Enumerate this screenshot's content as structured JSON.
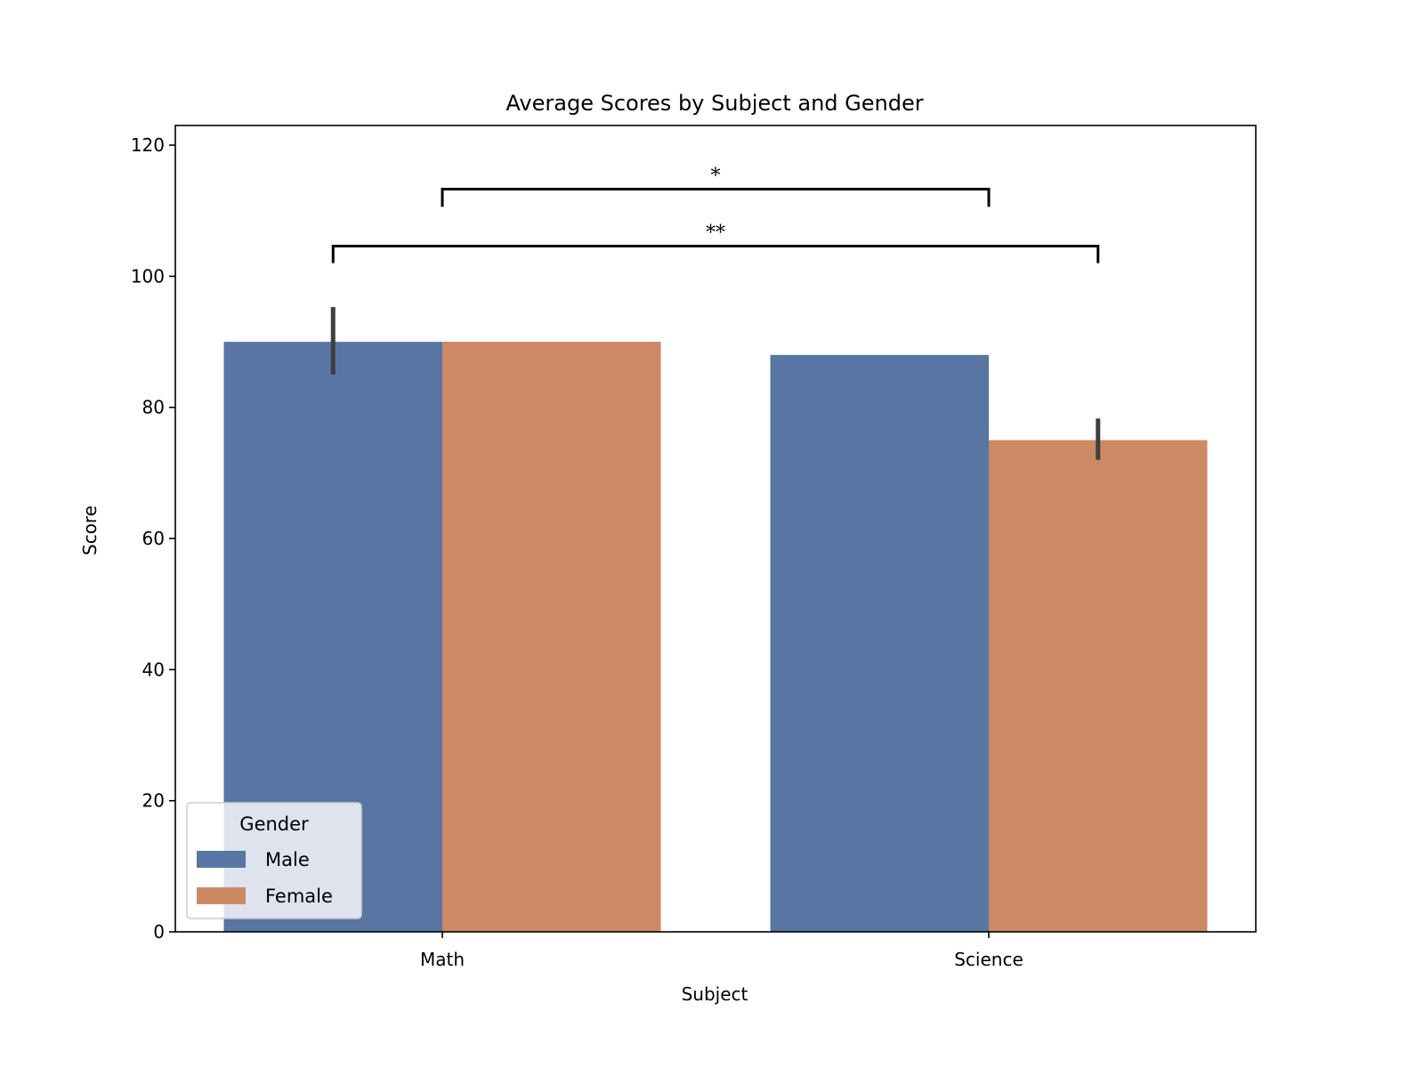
{
  "chart_data": {
    "type": "bar",
    "title": "Average Scores by Subject and Gender",
    "xlabel": "Subject",
    "ylabel": "Score",
    "ylim": [
      0,
      123
    ],
    "yticks": [
      0,
      20,
      40,
      60,
      80,
      100,
      120
    ],
    "categories": [
      "Math",
      "Science"
    ],
    "series": [
      {
        "name": "Male",
        "values": [
          90,
          88
        ],
        "error_low": [
          85,
          null
        ],
        "error_high": [
          95.3,
          null
        ],
        "color": "#5975a4"
      },
      {
        "name": "Female",
        "values": [
          90,
          75
        ],
        "error_low": [
          null,
          72
        ],
        "error_high": [
          null,
          78.3
        ],
        "color": "#cc8963"
      }
    ],
    "legend": {
      "title": "Gender",
      "position": "lower-left"
    },
    "grid": false,
    "annotations": [
      {
        "label": "*",
        "from": [
          "Math",
          "center"
        ],
        "to": [
          "Science",
          "center"
        ],
        "y": 113.3,
        "tick_bottom": 110.6
      },
      {
        "label": "**",
        "from": [
          "Math",
          "Male"
        ],
        "to": [
          "Science",
          "Female"
        ],
        "y": 104.6,
        "tick_bottom": 102.0
      }
    ]
  }
}
